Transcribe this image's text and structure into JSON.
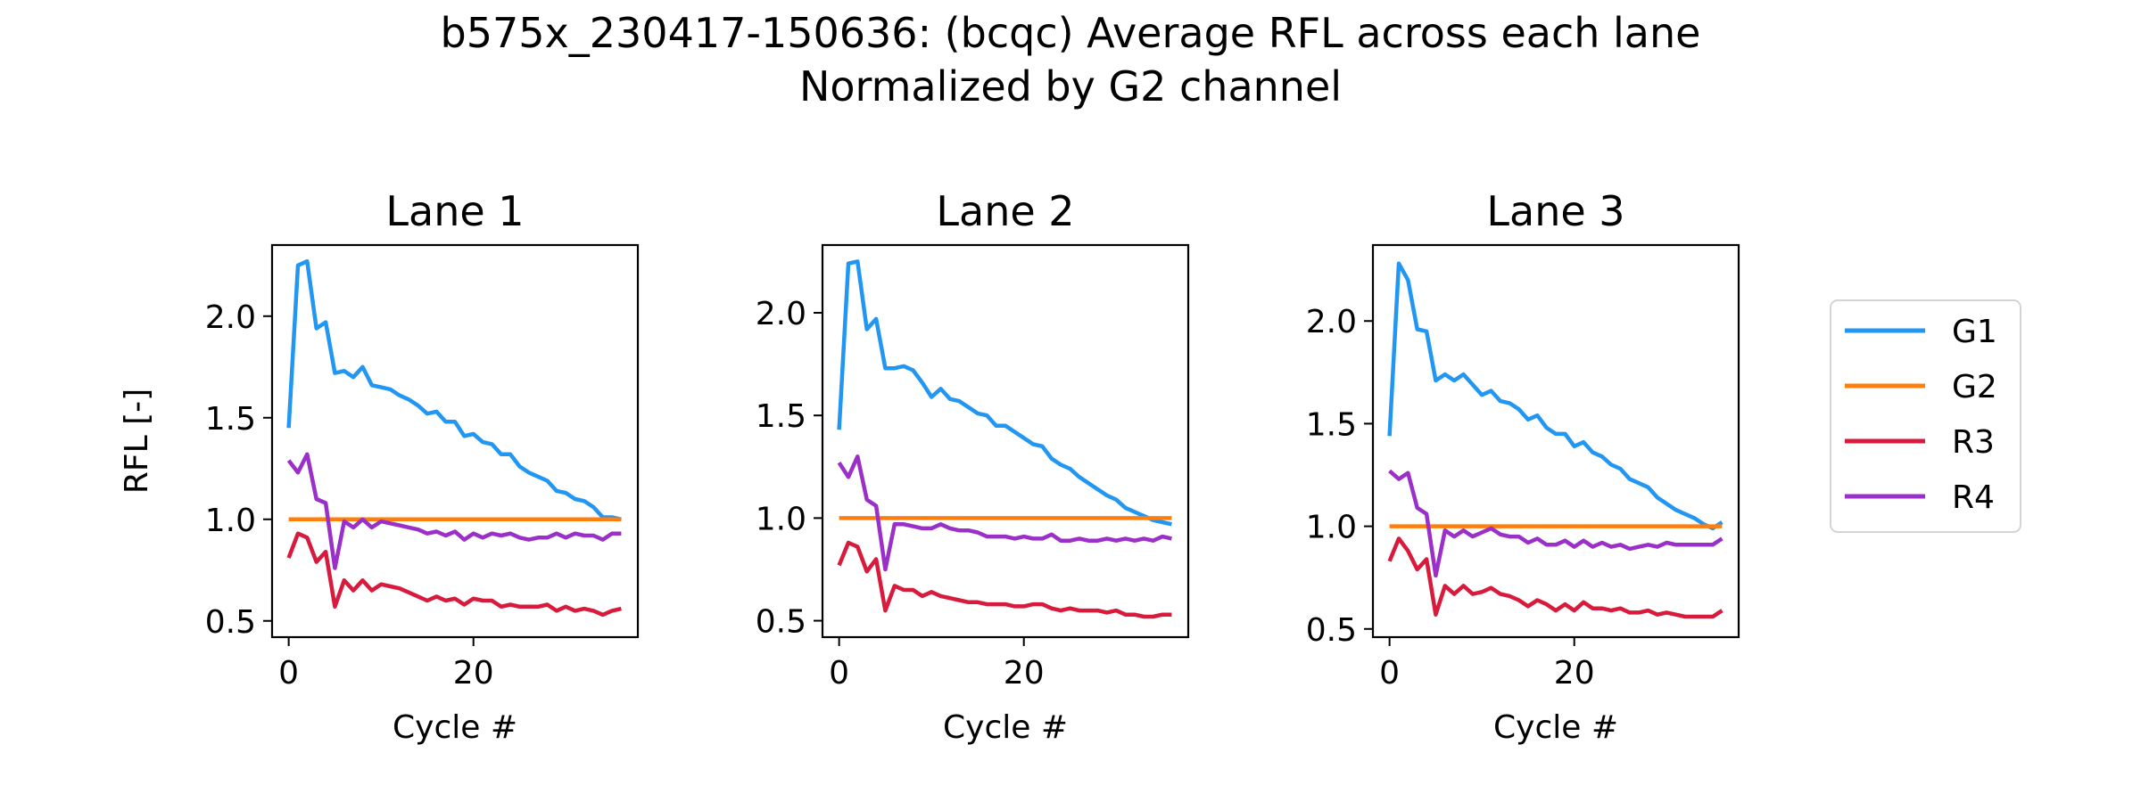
{
  "figure": {
    "title_line1": "b575x_230417-150636: (bcqc) Average RFL across each lane",
    "title_line2": "Normalized by G2 channel"
  },
  "chart_data": [
    {
      "type": "line",
      "title": "Lane 1",
      "xlabel": "Cycle #",
      "ylabel": "RFL [-]",
      "xlim": [
        -1.8,
        37.8
      ],
      "ylim": [
        0.42,
        2.35
      ],
      "xticks": [
        0,
        20
      ],
      "yticks": [
        0.5,
        1.0,
        1.5,
        2.0
      ],
      "ytick_labels": [
        "0.5",
        "1.0",
        "1.5",
        "2.0"
      ],
      "x": [
        0,
        1,
        2,
        3,
        4,
        5,
        6,
        7,
        8,
        9,
        10,
        11,
        12,
        13,
        14,
        15,
        16,
        17,
        18,
        19,
        20,
        21,
        22,
        23,
        24,
        25,
        26,
        27,
        28,
        29,
        30,
        31,
        32,
        33,
        34,
        35,
        36
      ],
      "series": [
        {
          "name": "G1",
          "color": "#2196f3",
          "values": [
            1.45,
            2.25,
            2.27,
            1.94,
            1.97,
            1.72,
            1.73,
            1.7,
            1.75,
            1.66,
            1.65,
            1.64,
            1.61,
            1.59,
            1.56,
            1.52,
            1.53,
            1.48,
            1.48,
            1.41,
            1.42,
            1.38,
            1.37,
            1.32,
            1.32,
            1.26,
            1.23,
            1.21,
            1.19,
            1.14,
            1.13,
            1.1,
            1.09,
            1.06,
            1.01,
            1.01,
            1.0
          ]
        },
        {
          "name": "G2",
          "color": "#ff7f0e",
          "values": [
            1.0,
            1.0,
            1.0,
            1.0,
            1.0,
            1.0,
            1.0,
            1.0,
            1.0,
            1.0,
            1.0,
            1.0,
            1.0,
            1.0,
            1.0,
            1.0,
            1.0,
            1.0,
            1.0,
            1.0,
            1.0,
            1.0,
            1.0,
            1.0,
            1.0,
            1.0,
            1.0,
            1.0,
            1.0,
            1.0,
            1.0,
            1.0,
            1.0,
            1.0,
            1.0,
            1.0,
            1.0
          ]
        },
        {
          "name": "R3",
          "color": "#d81b3c",
          "values": [
            0.81,
            0.93,
            0.91,
            0.79,
            0.84,
            0.57,
            0.7,
            0.65,
            0.7,
            0.65,
            0.68,
            0.67,
            0.66,
            0.64,
            0.62,
            0.6,
            0.62,
            0.6,
            0.61,
            0.58,
            0.61,
            0.6,
            0.6,
            0.57,
            0.58,
            0.57,
            0.57,
            0.57,
            0.58,
            0.55,
            0.57,
            0.55,
            0.56,
            0.55,
            0.53,
            0.55,
            0.56
          ]
        },
        {
          "name": "R4",
          "color": "#9b30c8",
          "values": [
            1.29,
            1.23,
            1.32,
            1.1,
            1.08,
            0.76,
            0.99,
            0.96,
            1.0,
            0.96,
            0.99,
            0.98,
            0.97,
            0.96,
            0.95,
            0.93,
            0.94,
            0.92,
            0.94,
            0.9,
            0.93,
            0.91,
            0.93,
            0.92,
            0.93,
            0.91,
            0.9,
            0.91,
            0.91,
            0.93,
            0.91,
            0.93,
            0.92,
            0.92,
            0.9,
            0.93,
            0.93
          ]
        }
      ]
    },
    {
      "type": "line",
      "title": "Lane 2",
      "xlabel": "Cycle #",
      "ylabel": "",
      "xlim": [
        -1.8,
        37.8
      ],
      "ylim": [
        0.42,
        2.33
      ],
      "xticks": [
        0,
        20
      ],
      "yticks": [
        0.5,
        1.0,
        1.5,
        2.0
      ],
      "ytick_labels": [
        "0.5",
        "1.0",
        "1.5",
        "2.0"
      ],
      "x": [
        0,
        1,
        2,
        3,
        4,
        5,
        6,
        7,
        8,
        9,
        10,
        11,
        12,
        13,
        14,
        15,
        16,
        17,
        18,
        19,
        20,
        21,
        22,
        23,
        24,
        25,
        26,
        27,
        28,
        29,
        30,
        31,
        32,
        33,
        34,
        35,
        36
      ],
      "series": [
        {
          "name": "G1",
          "color": "#2196f3",
          "values": [
            1.43,
            2.24,
            2.25,
            1.92,
            1.97,
            1.73,
            1.73,
            1.74,
            1.72,
            1.66,
            1.59,
            1.63,
            1.58,
            1.57,
            1.54,
            1.51,
            1.5,
            1.45,
            1.45,
            1.42,
            1.39,
            1.36,
            1.35,
            1.29,
            1.26,
            1.24,
            1.2,
            1.17,
            1.14,
            1.11,
            1.09,
            1.05,
            1.03,
            1.01,
            0.99,
            0.98,
            0.97
          ]
        },
        {
          "name": "G2",
          "color": "#ff7f0e",
          "values": [
            1.0,
            1.0,
            1.0,
            1.0,
            1.0,
            1.0,
            1.0,
            1.0,
            1.0,
            1.0,
            1.0,
            1.0,
            1.0,
            1.0,
            1.0,
            1.0,
            1.0,
            1.0,
            1.0,
            1.0,
            1.0,
            1.0,
            1.0,
            1.0,
            1.0,
            1.0,
            1.0,
            1.0,
            1.0,
            1.0,
            1.0,
            1.0,
            1.0,
            1.0,
            1.0,
            1.0,
            1.0
          ]
        },
        {
          "name": "R3",
          "color": "#d81b3c",
          "values": [
            0.77,
            0.88,
            0.86,
            0.74,
            0.8,
            0.55,
            0.67,
            0.65,
            0.65,
            0.62,
            0.64,
            0.62,
            0.61,
            0.6,
            0.59,
            0.59,
            0.58,
            0.58,
            0.58,
            0.57,
            0.57,
            0.58,
            0.58,
            0.56,
            0.55,
            0.56,
            0.55,
            0.55,
            0.55,
            0.54,
            0.55,
            0.53,
            0.53,
            0.52,
            0.52,
            0.53,
            0.53
          ]
        },
        {
          "name": "R4",
          "color": "#9b30c8",
          "values": [
            1.27,
            1.2,
            1.3,
            1.09,
            1.06,
            0.75,
            0.97,
            0.97,
            0.96,
            0.95,
            0.95,
            0.97,
            0.95,
            0.94,
            0.94,
            0.93,
            0.91,
            0.91,
            0.91,
            0.9,
            0.91,
            0.9,
            0.9,
            0.92,
            0.89,
            0.89,
            0.9,
            0.89,
            0.89,
            0.9,
            0.89,
            0.9,
            0.89,
            0.9,
            0.89,
            0.91,
            0.9
          ]
        }
      ]
    },
    {
      "type": "line",
      "title": "Lane 3",
      "xlabel": "Cycle #",
      "ylabel": "",
      "xlim": [
        -1.8,
        37.8
      ],
      "ylim": [
        0.46,
        2.37
      ],
      "xticks": [
        0,
        20
      ],
      "yticks": [
        0.5,
        1.0,
        1.5,
        2.0
      ],
      "ytick_labels": [
        "0.5",
        "1.0",
        "1.5",
        "2.0"
      ],
      "x": [
        0,
        1,
        2,
        3,
        4,
        5,
        6,
        7,
        8,
        9,
        10,
        11,
        12,
        13,
        14,
        15,
        16,
        17,
        18,
        19,
        20,
        21,
        22,
        23,
        24,
        25,
        26,
        27,
        28,
        29,
        30,
        31,
        32,
        33,
        34,
        35,
        36
      ],
      "series": [
        {
          "name": "G1",
          "color": "#2196f3",
          "values": [
            1.44,
            2.28,
            2.2,
            1.96,
            1.95,
            1.71,
            1.74,
            1.71,
            1.74,
            1.69,
            1.64,
            1.66,
            1.61,
            1.6,
            1.57,
            1.52,
            1.54,
            1.48,
            1.45,
            1.45,
            1.39,
            1.41,
            1.36,
            1.34,
            1.3,
            1.28,
            1.23,
            1.21,
            1.19,
            1.14,
            1.11,
            1.08,
            1.06,
            1.04,
            1.01,
            0.99,
            1.02
          ]
        },
        {
          "name": "G2",
          "color": "#ff7f0e",
          "values": [
            1.0,
            1.0,
            1.0,
            1.0,
            1.0,
            1.0,
            1.0,
            1.0,
            1.0,
            1.0,
            1.0,
            1.0,
            1.0,
            1.0,
            1.0,
            1.0,
            1.0,
            1.0,
            1.0,
            1.0,
            1.0,
            1.0,
            1.0,
            1.0,
            1.0,
            1.0,
            1.0,
            1.0,
            1.0,
            1.0,
            1.0,
            1.0,
            1.0,
            1.0,
            1.0,
            1.0,
            1.0
          ]
        },
        {
          "name": "R3",
          "color": "#d81b3c",
          "values": [
            0.83,
            0.94,
            0.88,
            0.79,
            0.84,
            0.57,
            0.71,
            0.67,
            0.71,
            0.67,
            0.68,
            0.7,
            0.67,
            0.66,
            0.64,
            0.61,
            0.64,
            0.62,
            0.59,
            0.62,
            0.59,
            0.63,
            0.6,
            0.6,
            0.59,
            0.6,
            0.58,
            0.58,
            0.59,
            0.57,
            0.58,
            0.57,
            0.56,
            0.56,
            0.56,
            0.56,
            0.59
          ]
        },
        {
          "name": "R4",
          "color": "#9b30c8",
          "values": [
            1.27,
            1.23,
            1.26,
            1.09,
            1.06,
            0.76,
            0.98,
            0.95,
            0.98,
            0.95,
            0.97,
            0.99,
            0.96,
            0.95,
            0.95,
            0.92,
            0.94,
            0.91,
            0.91,
            0.93,
            0.9,
            0.93,
            0.9,
            0.92,
            0.9,
            0.91,
            0.89,
            0.9,
            0.91,
            0.9,
            0.92,
            0.91,
            0.91,
            0.91,
            0.91,
            0.91,
            0.94
          ]
        }
      ]
    }
  ],
  "legend": {
    "placement": "right",
    "items": [
      {
        "label": "G1",
        "color": "#2196f3"
      },
      {
        "label": "G2",
        "color": "#ff7f0e"
      },
      {
        "label": "R3",
        "color": "#d81b3c"
      },
      {
        "label": "R4",
        "color": "#9b30c8"
      }
    ]
  }
}
